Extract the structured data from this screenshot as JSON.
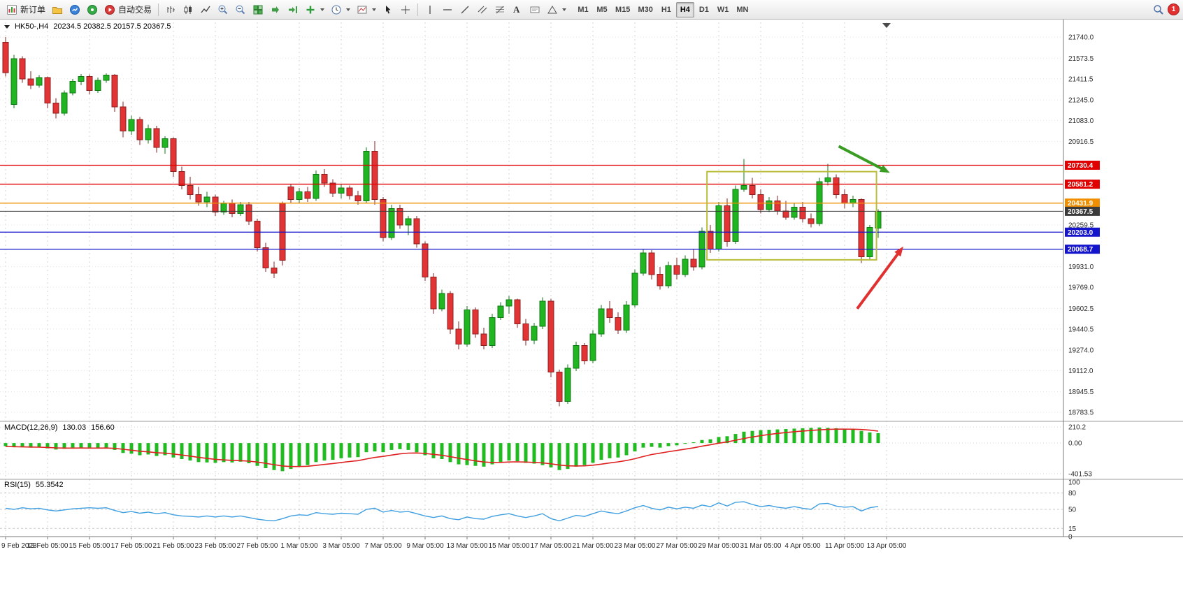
{
  "toolbar": {
    "new_order": "新订单",
    "auto_trading": "自动交易",
    "text_tool": "A",
    "timeframes": [
      "M1",
      "M5",
      "M15",
      "M30",
      "H1",
      "H4",
      "D1",
      "W1",
      "MN"
    ],
    "active_timeframe": "H4",
    "notification_count": "1"
  },
  "chart": {
    "symbol_period": "HK50-,H4",
    "ohlc_line": "20234.5 20382.5 20157.5 20367.5"
  },
  "indicators": {
    "macd": {
      "label": "MACD(12,26,9)",
      "value_main": "130.03",
      "value_signal": "156.60"
    },
    "rsi": {
      "label": "RSI(15)",
      "value": "55.3542"
    }
  },
  "chart_data": {
    "type": "candlestick",
    "symbol": "HK50-",
    "period": "H4",
    "last_ohlc": {
      "open": 20234.5,
      "high": 20382.5,
      "low": 20157.5,
      "close": 20367.5
    },
    "price_range": {
      "max": 21790,
      "min": 18740
    },
    "price_axis_labels": [
      21740.0,
      21573.5,
      21411.5,
      21245.0,
      21083.0,
      20916.5,
      20259.5,
      19931.0,
      19769.0,
      19602.5,
      19440.5,
      19274.0,
      19112.0,
      18945.5,
      18783.5
    ],
    "levels": [
      {
        "value": 20730.4,
        "color": "#e00000",
        "type": "resistance"
      },
      {
        "value": 20581.2,
        "color": "#e00000",
        "type": "resistance"
      },
      {
        "value": 20431.9,
        "color": "#ef8f00",
        "type": "pivot"
      },
      {
        "value": 20367.5,
        "color": "#3a3a3a",
        "type": "current-price"
      },
      {
        "value": 20203.0,
        "color": "#1414cc",
        "type": "support"
      },
      {
        "value": 20068.7,
        "color": "#1414cc",
        "type": "support"
      }
    ],
    "date_labels": [
      "9 Feb 2023",
      "13 Feb 05:00",
      "15 Feb 05:00",
      "17 Feb 05:00",
      "21 Feb 05:00",
      "23 Feb 05:00",
      "27 Feb 05:00",
      "1 Mar 05:00",
      "3 Mar 05:00",
      "7 Mar 05:00",
      "9 Mar 05:00",
      "13 Mar 05:00",
      "15 Mar 05:00",
      "17 Mar 05:00",
      "21 Mar 05:00",
      "23 Mar 05:00",
      "27 Mar 05:00",
      "29 Mar 05:00",
      "31 Mar 05:00",
      "4 Apr 05:00",
      "11 Apr 05:00",
      "13 Apr 05:00"
    ],
    "label_every_n_candles": 5,
    "colors": {
      "up": "#21b521",
      "down": "#e23434",
      "up_border": "#0e7a12",
      "down_border": "#8d1f1f"
    },
    "candles": [
      [
        21700,
        21740,
        21430,
        21460
      ],
      [
        21210,
        21600,
        21180,
        21570
      ],
      [
        21570,
        21590,
        21380,
        21410
      ],
      [
        21410,
        21470,
        21330,
        21360
      ],
      [
        21360,
        21440,
        21340,
        21420
      ],
      [
        21420,
        21430,
        21180,
        21220
      ],
      [
        21220,
        21260,
        21100,
        21140
      ],
      [
        21140,
        21320,
        21120,
        21300
      ],
      [
        21300,
        21410,
        21280,
        21390
      ],
      [
        21390,
        21450,
        21360,
        21430
      ],
      [
        21430,
        21445,
        21290,
        21320
      ],
      [
        21320,
        21420,
        21300,
        21400
      ],
      [
        21400,
        21455,
        21380,
        21440
      ],
      [
        21440,
        21450,
        21150,
        21190
      ],
      [
        21190,
        21230,
        20950,
        21000
      ],
      [
        21000,
        21120,
        20970,
        21090
      ],
      [
        21090,
        21110,
        20890,
        20930
      ],
      [
        20930,
        21050,
        20900,
        21020
      ],
      [
        21020,
        21040,
        20830,
        20870
      ],
      [
        20870,
        20960,
        20820,
        20940
      ],
      [
        20940,
        20950,
        20640,
        20680
      ],
      [
        20680,
        20720,
        20540,
        20570
      ],
      [
        20570,
        20640,
        20460,
        20500
      ],
      [
        20500,
        20560,
        20410,
        20440
      ],
      [
        20440,
        20520,
        20400,
        20480
      ],
      [
        20480,
        20500,
        20330,
        20360
      ],
      [
        20360,
        20450,
        20340,
        20430
      ],
      [
        20430,
        20460,
        20320,
        20350
      ],
      [
        20350,
        20440,
        20330,
        20420
      ],
      [
        20420,
        20440,
        20260,
        20290
      ],
      [
        20290,
        20310,
        20050,
        20080
      ],
      [
        20080,
        20120,
        19890,
        19920
      ],
      [
        19920,
        19970,
        19840,
        19880
      ],
      [
        20430,
        20445,
        19940,
        19980
      ],
      [
        20560,
        20580,
        20430,
        20460
      ],
      [
        20460,
        20550,
        20430,
        20520
      ],
      [
        20520,
        20560,
        20440,
        20470
      ],
      [
        20470,
        20690,
        20450,
        20660
      ],
      [
        20660,
        20700,
        20560,
        20590
      ],
      [
        20590,
        20620,
        20480,
        20510
      ],
      [
        20510,
        20580,
        20470,
        20550
      ],
      [
        20550,
        20570,
        20460,
        20490
      ],
      [
        20490,
        20530,
        20420,
        20450
      ],
      [
        20450,
        20870,
        20430,
        20840
      ],
      [
        20840,
        20920,
        20420,
        20460
      ],
      [
        20460,
        20480,
        20130,
        20160
      ],
      [
        20160,
        20420,
        20140,
        20390
      ],
      [
        20390,
        20420,
        20230,
        20260
      ],
      [
        20260,
        20330,
        20180,
        20310
      ],
      [
        20310,
        20330,
        20080,
        20110
      ],
      [
        20110,
        20130,
        19820,
        19850
      ],
      [
        19850,
        19880,
        19560,
        19600
      ],
      [
        19600,
        19750,
        19580,
        19720
      ],
      [
        19720,
        19740,
        19400,
        19440
      ],
      [
        19440,
        19500,
        19280,
        19320
      ],
      [
        19320,
        19620,
        19300,
        19590
      ],
      [
        19590,
        19610,
        19370,
        19400
      ],
      [
        19400,
        19450,
        19280,
        19310
      ],
      [
        19310,
        19560,
        19290,
        19530
      ],
      [
        19530,
        19650,
        19510,
        19620
      ],
      [
        19620,
        19700,
        19560,
        19670
      ],
      [
        19670,
        19680,
        19450,
        19480
      ],
      [
        19480,
        19520,
        19310,
        19350
      ],
      [
        19350,
        19490,
        19320,
        19460
      ],
      [
        19460,
        19690,
        19440,
        19660
      ],
      [
        19660,
        19680,
        19060,
        19100
      ],
      [
        19100,
        19120,
        18830,
        18870
      ],
      [
        18870,
        19160,
        18850,
        19130
      ],
      [
        19130,
        19340,
        19110,
        19310
      ],
      [
        19310,
        19330,
        19160,
        19190
      ],
      [
        19190,
        19430,
        19170,
        19400
      ],
      [
        19400,
        19630,
        19380,
        19600
      ],
      [
        19600,
        19660,
        19490,
        19530
      ],
      [
        19530,
        19570,
        19400,
        19430
      ],
      [
        19430,
        19660,
        19410,
        19630
      ],
      [
        19630,
        19910,
        19610,
        19880
      ],
      [
        19880,
        20070,
        19860,
        20040
      ],
      [
        20040,
        20060,
        19830,
        19870
      ],
      [
        19870,
        19930,
        19750,
        19780
      ],
      [
        19780,
        19970,
        19760,
        19940
      ],
      [
        19940,
        20000,
        19830,
        19870
      ],
      [
        19870,
        20020,
        19850,
        19990
      ],
      [
        19990,
        20070,
        19900,
        19930
      ],
      [
        19930,
        20240,
        19910,
        20210
      ],
      [
        20210,
        20260,
        20040,
        20070
      ],
      [
        20070,
        20440,
        20050,
        20410
      ],
      [
        20410,
        20470,
        20090,
        20130
      ],
      [
        20130,
        20570,
        20110,
        20540
      ],
      [
        20540,
        20780,
        20520,
        20570
      ],
      [
        20570,
        20630,
        20470,
        20500
      ],
      [
        20500,
        20540,
        20350,
        20380
      ],
      [
        20380,
        20480,
        20360,
        20450
      ],
      [
        20450,
        20490,
        20340,
        20370
      ],
      [
        20370,
        20450,
        20300,
        20320
      ],
      [
        20320,
        20430,
        20300,
        20400
      ],
      [
        20400,
        20440,
        20280,
        20310
      ],
      [
        20310,
        20350,
        20240,
        20270
      ],
      [
        20270,
        20630,
        20250,
        20600
      ],
      [
        20600,
        20740,
        20570,
        20630
      ],
      [
        20630,
        20660,
        20470,
        20500
      ],
      [
        20500,
        20540,
        20390,
        20430
      ],
      [
        20430,
        20490,
        20400,
        20460
      ],
      [
        20460,
        20470,
        19960,
        20010
      ],
      [
        20010,
        20260,
        19990,
        20240
      ],
      [
        20234.5,
        20382.5,
        20157.5,
        20367.5
      ]
    ],
    "box_annotation": {
      "start_index": 83.6,
      "end_index": 103.8,
      "price_top": 20680,
      "price_bottom": 19985,
      "color": "#b9bd3a"
    },
    "arrows": [
      {
        "name": "green-arrow",
        "from_index": 99.3,
        "from_price": 20880,
        "to_index": 105.4,
        "to_price": 20670,
        "color": "#3a9d23"
      },
      {
        "name": "red-arrow",
        "from_index": 101.5,
        "from_price": 19600,
        "to_index": 107.0,
        "to_price": 20090,
        "color": "#e03030"
      }
    ],
    "macd": {
      "params": "12,26,9",
      "scale": {
        "max": 240,
        "min": -440
      },
      "scale_labels": [
        {
          "text": "210.2",
          "value": 210.2
        },
        {
          "text": "0.00",
          "value": 0
        },
        {
          "text": "-401.53",
          "value": -401.53
        }
      ],
      "histogram_color": "#21bb21",
      "signal_color": "#e02020",
      "histogram": [
        -40,
        -55,
        -50,
        -60,
        -55,
        -70,
        -85,
        -75,
        -65,
        -60,
        -70,
        -65,
        -60,
        -90,
        -130,
        -140,
        -160,
        -150,
        -170,
        -160,
        -190,
        -210,
        -230,
        -250,
        -255,
        -260,
        -250,
        -255,
        -245,
        -265,
        -300,
        -330,
        -355,
        -370,
        -340,
        -310,
        -290,
        -250,
        -230,
        -220,
        -200,
        -190,
        -185,
        -120,
        -110,
        -120,
        -90,
        -80,
        -90,
        -120,
        -160,
        -200,
        -210,
        -250,
        -280,
        -290,
        -300,
        -310,
        -280,
        -250,
        -230,
        -240,
        -260,
        -270,
        -290,
        -320,
        -355,
        -340,
        -310,
        -290,
        -260,
        -220,
        -200,
        -190,
        -160,
        -110,
        -60,
        -50,
        -60,
        -40,
        -30,
        -10,
        10,
        40,
        50,
        80,
        90,
        120,
        150,
        160,
        170,
        175,
        180,
        185,
        190,
        195,
        200,
        205,
        200,
        195,
        185,
        180,
        160,
        140,
        130
      ],
      "signal": [
        -45,
        -48,
        -50,
        -52,
        -54,
        -58,
        -63,
        -66,
        -66,
        -65,
        -66,
        -66,
        -65,
        -70,
        -82,
        -94,
        -107,
        -116,
        -127,
        -133,
        -144,
        -157,
        -172,
        -188,
        -202,
        -214,
        -221,
        -228,
        -231,
        -238,
        -250,
        -266,
        -284,
        -301,
        -309,
        -309,
        -305,
        -294,
        -281,
        -269,
        -255,
        -242,
        -231,
        -209,
        -189,
        -175,
        -158,
        -142,
        -132,
        -130,
        -136,
        -149,
        -161,
        -179,
        -199,
        -217,
        -234,
        -249,
        -255,
        -254,
        -249,
        -247,
        -250,
        -254,
        -261,
        -273,
        -289,
        -299,
        -301,
        -299,
        -291,
        -277,
        -262,
        -247,
        -230,
        -206,
        -177,
        -151,
        -133,
        -114,
        -97,
        -80,
        -62,
        -41,
        -23,
        -2,
        16,
        37,
        60,
        80,
        98,
        113,
        127,
        138,
        149,
        158,
        166,
        174,
        179,
        183,
        183,
        182,
        178,
        170,
        157
      ]
    },
    "rsi": {
      "period": 15,
      "color": "#3f9fe0",
      "scale_labels": [
        {
          "text": "100",
          "value": 100
        },
        {
          "text": "80",
          "value": 80
        },
        {
          "text": "50",
          "value": 50
        },
        {
          "text": "15",
          "value": 15
        },
        {
          "text": "0",
          "value": 0
        }
      ],
      "levels": [
        80,
        50,
        15
      ],
      "values": [
        52,
        50,
        53,
        51,
        52,
        49,
        47,
        49,
        51,
        52,
        53,
        52,
        53,
        48,
        44,
        46,
        43,
        45,
        42,
        44,
        40,
        38,
        37,
        36,
        38,
        36,
        38,
        36,
        38,
        35,
        32,
        30,
        29,
        33,
        38,
        40,
        39,
        44,
        42,
        41,
        43,
        42,
        41,
        50,
        52,
        45,
        48,
        45,
        46,
        42,
        38,
        35,
        38,
        33,
        31,
        36,
        33,
        32,
        37,
        40,
        42,
        38,
        35,
        38,
        42,
        33,
        29,
        34,
        39,
        37,
        42,
        47,
        44,
        42,
        47,
        53,
        57,
        52,
        49,
        54,
        51,
        54,
        52,
        58,
        55,
        62,
        56,
        63,
        64,
        59,
        55,
        57,
        54,
        52,
        55,
        52,
        50,
        60,
        61,
        56,
        54,
        55,
        47,
        53,
        55.35
      ]
    }
  }
}
